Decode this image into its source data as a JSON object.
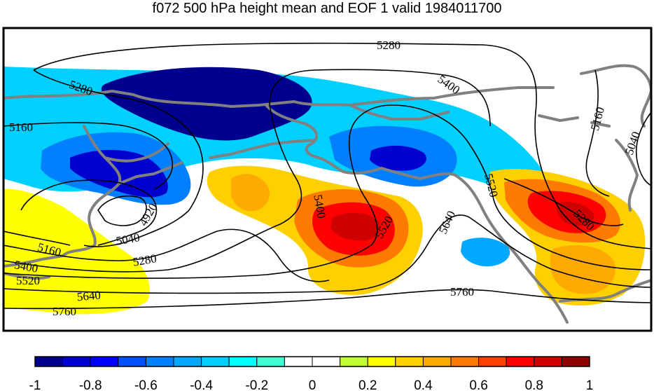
{
  "chart_data": {
    "type": "heatmap",
    "title": "f072 500 hPa height mean and EOF 1 valid 1984011700",
    "colorbar": {
      "colors": [
        "#00008f",
        "#0000cf",
        "#0000ff",
        "#0050ff",
        "#0080ff",
        "#00a8ff",
        "#00d0ff",
        "#00ffff",
        "#40ffd0",
        "#ffffff",
        "#ffffff",
        "#c0ff30",
        "#ffff00",
        "#ffd000",
        "#ffaa00",
        "#ff7a00",
        "#ff4000",
        "#ff0000",
        "#cf0000",
        "#8f0000"
      ],
      "ticks": [
        -1,
        -0.8,
        -0.6,
        -0.4,
        -0.2,
        0,
        0.2,
        0.4,
        0.6,
        0.8,
        1
      ],
      "tick_labels": [
        "-1",
        "-0.8",
        "-0.6",
        "-0.4",
        "-0.2",
        "0",
        "0.2",
        "0.4",
        "0.6",
        "0.8",
        "1"
      ],
      "range": [
        -1,
        1
      ]
    },
    "eof_anomalies": [
      {
        "id": "neg-band-north",
        "level": -0.4
      },
      {
        "id": "neg-core-aleutian",
        "level": -0.9
      },
      {
        "id": "neg-west",
        "level": -0.6
      },
      {
        "id": "neg-west-core",
        "level": -0.8
      },
      {
        "id": "neg-alaska",
        "level": -0.6
      },
      {
        "id": "neg-alaska-core",
        "level": -0.85
      },
      {
        "id": "neg-east-small",
        "level": -0.5
      },
      {
        "id": "pos-southwest",
        "level": 0.25
      },
      {
        "id": "pos-central",
        "level": 0.3
      },
      {
        "id": "pos-central-orange",
        "level": 0.5
      },
      {
        "id": "pos-central-red",
        "level": 0.7
      },
      {
        "id": "pos-central-core",
        "level": 0.85
      },
      {
        "id": "pos-northwest-orange",
        "level": 0.45
      },
      {
        "id": "pos-east",
        "level": 0.3
      },
      {
        "id": "pos-east-orange",
        "level": 0.5
      },
      {
        "id": "pos-east-red",
        "level": 0.7
      },
      {
        "id": "pos-east-core",
        "level": 0.85
      },
      {
        "id": "pos-east-south-orange",
        "level": 0.45
      }
    ],
    "contour_levels": [
      {
        "label": "4920"
      },
      {
        "label": "5040"
      },
      {
        "label": "5160"
      },
      {
        "label": "5280"
      },
      {
        "label": "5400"
      },
      {
        "label": "5520"
      },
      {
        "label": "5640"
      },
      {
        "label": "5760"
      }
    ],
    "contour_labels": [
      {
        "text": "5280",
        "key": "c1"
      },
      {
        "text": "5280",
        "key": "c2"
      },
      {
        "text": "5400",
        "key": "c3"
      },
      {
        "text": "5160",
        "key": "c4"
      },
      {
        "text": "5160",
        "key": "c5"
      },
      {
        "text": "5040",
        "key": "c6"
      },
      {
        "text": "4920",
        "key": "c7"
      },
      {
        "text": "5040",
        "key": "c8"
      },
      {
        "text": "5280",
        "key": "c9"
      },
      {
        "text": "5160",
        "key": "c10"
      },
      {
        "text": "5400",
        "key": "c11"
      },
      {
        "text": "5520",
        "key": "c12"
      },
      {
        "text": "5640",
        "key": "c13"
      },
      {
        "text": "5760",
        "key": "c14"
      },
      {
        "text": "5400",
        "key": "c15"
      },
      {
        "text": "5520",
        "key": "c16"
      },
      {
        "text": "5640",
        "key": "c17"
      },
      {
        "text": "5520",
        "key": "c18"
      },
      {
        "text": "5760",
        "key": "c19"
      },
      {
        "text": "5280",
        "key": "c20"
      }
    ],
    "xlabel": "",
    "ylabel": "",
    "grid": false,
    "legend": "bottom colorbar"
  }
}
